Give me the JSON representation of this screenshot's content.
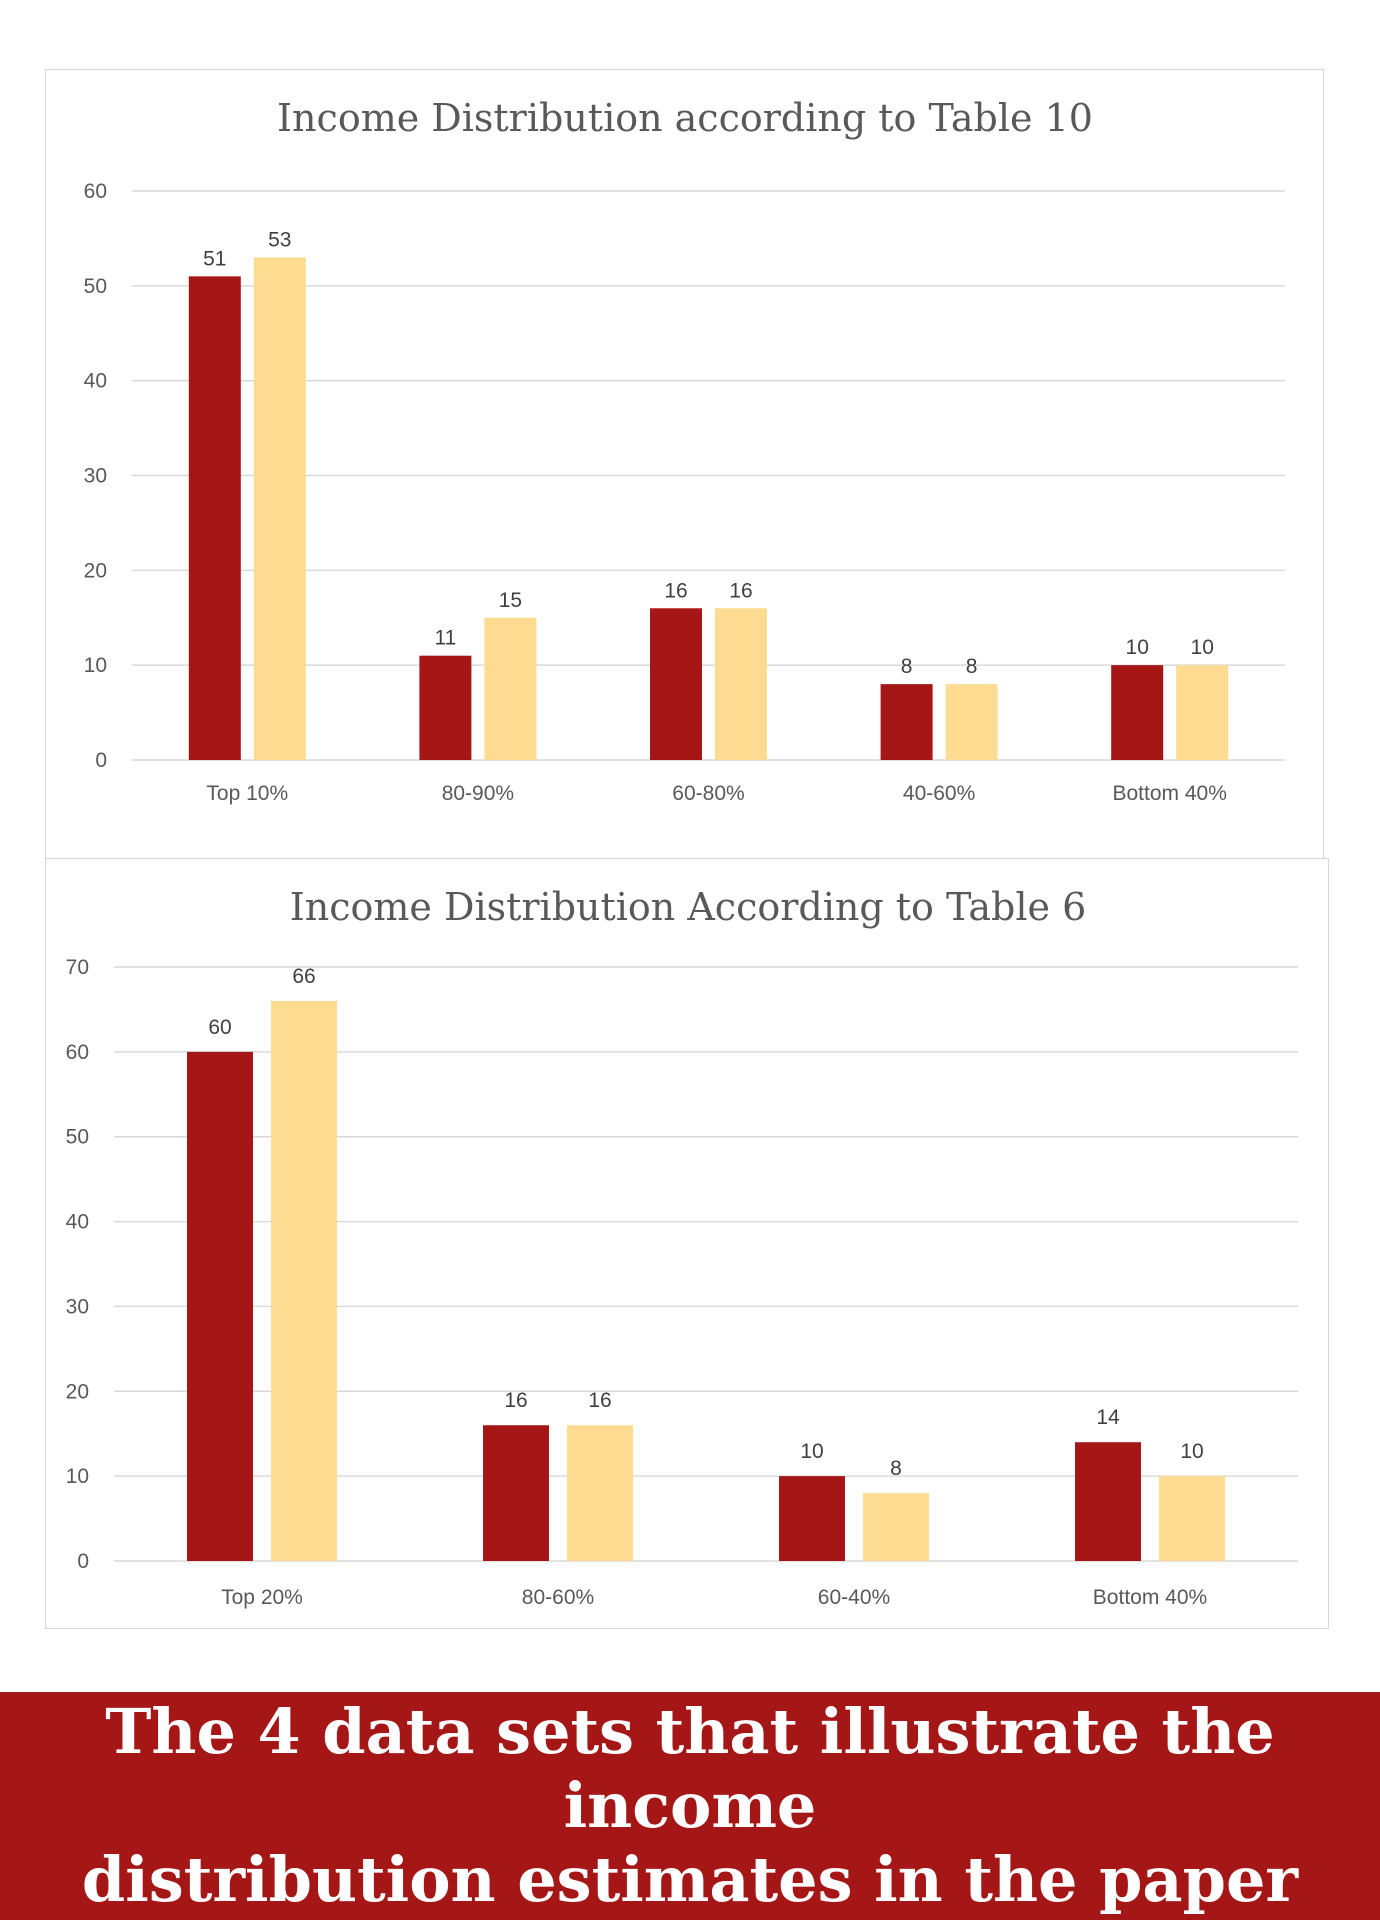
{
  "colors": {
    "series_1": "#a51616",
    "series_2": "#fddc91",
    "gridline": "#d9d9d9",
    "banner": "#a51616"
  },
  "chart_data": [
    {
      "type": "bar",
      "title": "Income Distribution according to Table 10",
      "categories": [
        "Top 10%",
        "80-90%",
        "60-80%",
        "40-60%",
        "Bottom 40%"
      ],
      "series": [
        {
          "values": [
            51,
            11,
            16,
            8,
            10
          ],
          "color": "#a51616"
        },
        {
          "values": [
            53,
            15,
            16,
            8,
            10
          ],
          "color": "#fddc91"
        }
      ],
      "ylim": [
        0,
        60
      ],
      "yticks": [
        0,
        10,
        20,
        30,
        40,
        50,
        60
      ],
      "grid": true,
      "data_labels": true,
      "legend": "none"
    },
    {
      "type": "bar",
      "title": "Income Distribution According to Table 6",
      "categories": [
        "Top 20%",
        "80-60%",
        "60-40%",
        "Bottom 40%"
      ],
      "series": [
        {
          "values": [
            60,
            16,
            10,
            14
          ],
          "color": "#a51616"
        },
        {
          "values": [
            66,
            16,
            8,
            10
          ],
          "color": "#fddc91"
        }
      ],
      "ylim": [
        0,
        70
      ],
      "yticks": [
        0,
        10,
        20,
        30,
        40,
        50,
        60,
        70
      ],
      "grid": true,
      "data_labels": true,
      "legend": "none"
    }
  ],
  "caption": {
    "line1": "The 4 data sets that illustrate the income",
    "line2": "distribution estimates in the paper"
  }
}
